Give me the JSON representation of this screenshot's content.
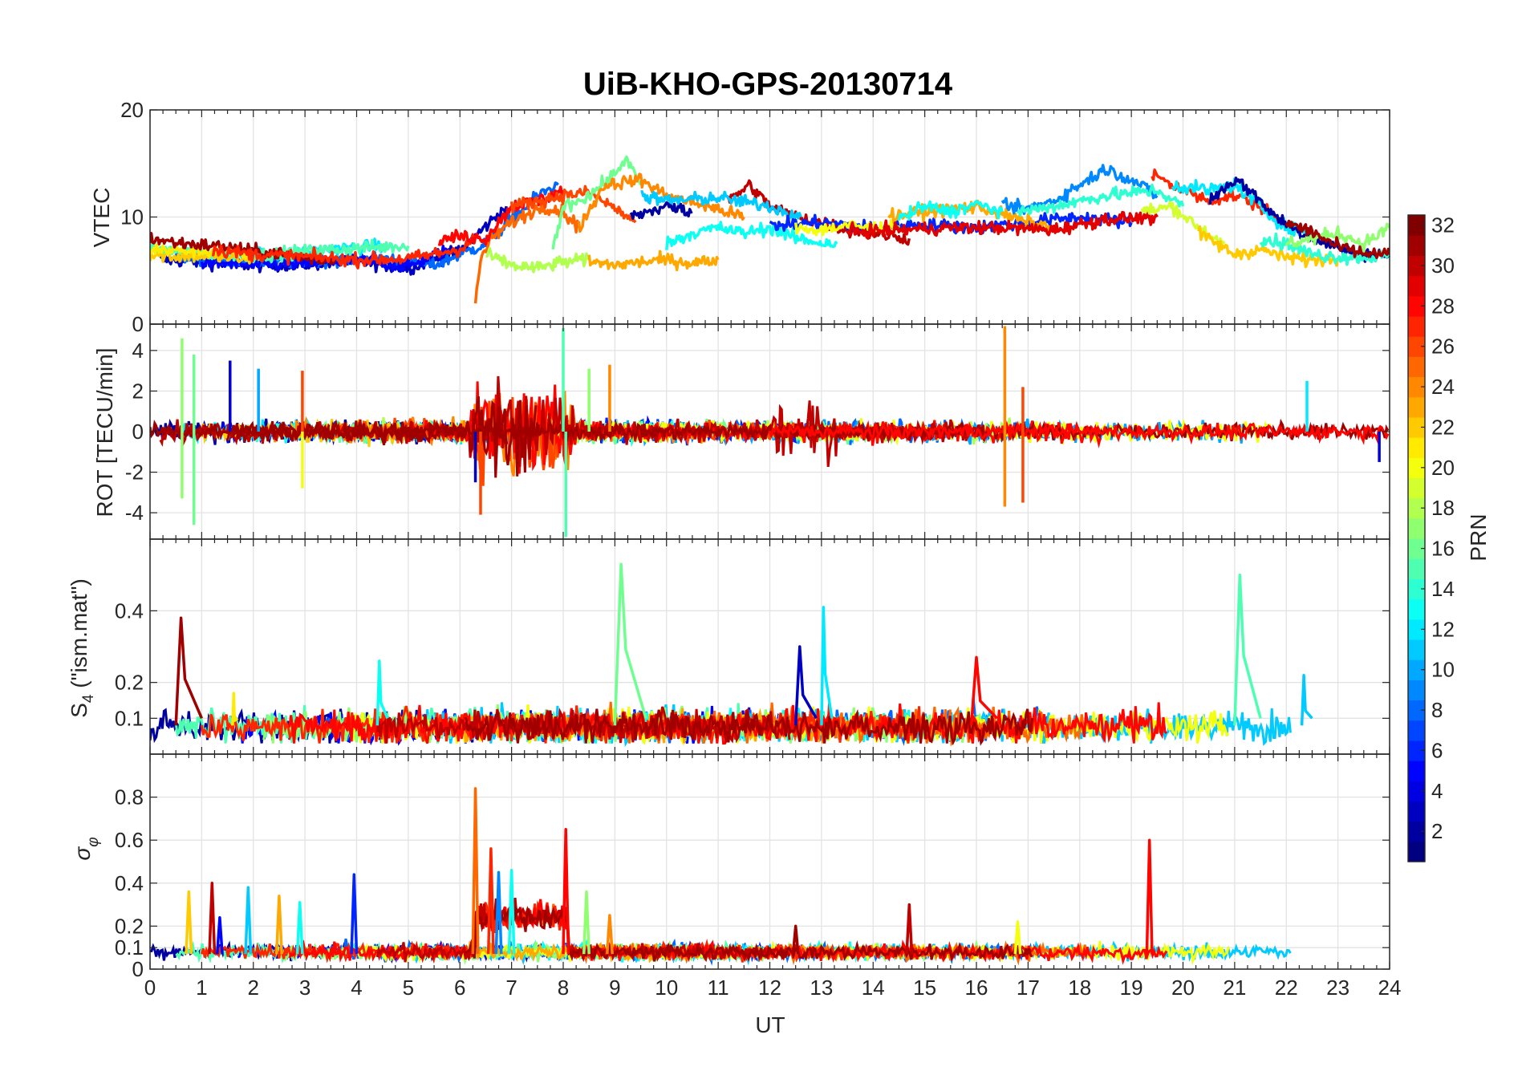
{
  "title": "UiB-KHO-GPS-20130714",
  "chart_data": [
    {
      "type": "line",
      "panel": "vtec",
      "ylabel": "VTEC",
      "ylim": [
        0,
        20
      ],
      "yticks": [
        0,
        10,
        20
      ],
      "xlim": [
        0,
        24
      ],
      "grid": true,
      "series_generation": "satellite tracks by PRN",
      "arcs": [
        {
          "prn": 3,
          "x": [
            0.2,
            1,
            2,
            3,
            4,
            5,
            6,
            6.9
          ],
          "y": [
            6,
            5.8,
            5.5,
            5.6,
            5.9,
            5.2,
            6.8,
            11
          ]
        },
        {
          "prn": 8,
          "x": [
            0.5,
            1.5,
            2.5,
            3.5,
            4.5,
            5.5,
            6.5,
            7.5,
            7.9
          ],
          "y": [
            6.2,
            6,
            5.8,
            6,
            6.2,
            5.5,
            7.5,
            12,
            13
          ]
        },
        {
          "prn": 5,
          "x": [
            1,
            2,
            3,
            4,
            5,
            5.8
          ],
          "y": [
            5.8,
            5.5,
            5.6,
            6,
            5.4,
            7
          ]
        },
        {
          "prn": 12,
          "x": [
            1.5,
            2.5,
            3.5,
            4.5
          ],
          "y": [
            6.8,
            6.5,
            7,
            7.3
          ]
        },
        {
          "prn": 15,
          "x": [
            0,
            1,
            2,
            3,
            4,
            5
          ],
          "y": [
            7,
            6.6,
            6.4,
            6.8,
            7.1,
            7.3
          ]
        },
        {
          "prn": 22,
          "x": [
            0,
            0.5,
            1,
            1.5,
            2
          ],
          "y": [
            6.5,
            6.3,
            6.4,
            6.2,
            6
          ]
        },
        {
          "prn": 21,
          "x": [
            0,
            1,
            2
          ],
          "y": [
            7,
            6.8,
            6.6
          ]
        },
        {
          "prn": 31,
          "x": [
            0,
            0.5,
            1,
            1.5,
            2,
            2.5,
            3,
            3.6
          ],
          "y": [
            8,
            7.6,
            7.4,
            7.2,
            6.8,
            6.6,
            6.2,
            5.9
          ]
        },
        {
          "prn": 27,
          "x": [
            1.2,
            2,
            3,
            4,
            5,
            6,
            6.3
          ],
          "y": [
            7,
            6.5,
            6.3,
            6,
            6.1,
            7,
            8
          ]
        },
        {
          "prn": 25,
          "x": [
            6.3,
            6.4,
            6.6,
            7,
            7.6,
            8,
            8.3
          ],
          "y": [
            2,
            6,
            8,
            9.5,
            11,
            10.5,
            9
          ]
        },
        {
          "prn": 28,
          "x": [
            5.6,
            6,
            6.5,
            7,
            7.5,
            8
          ],
          "y": [
            7.8,
            8.2,
            8,
            11,
            11.5,
            12.5
          ]
        },
        {
          "prn": 26,
          "x": [
            7,
            7.5,
            8,
            8.5,
            9,
            9.4
          ],
          "y": [
            11,
            11.5,
            12,
            12.3,
            10.8,
            9.5
          ]
        },
        {
          "prn": 18,
          "x": [
            6.5,
            7,
            7.5,
            8,
            8.5
          ],
          "y": [
            6.5,
            5.5,
            5.2,
            5.8,
            6
          ]
        },
        {
          "prn": 16,
          "x": [
            7.8,
            8,
            8.5,
            9,
            9.2,
            9.5
          ],
          "y": [
            7,
            11,
            12,
            14,
            15.5,
            13
          ]
        },
        {
          "prn": 23,
          "x": [
            8.5,
            9,
            9.5,
            10,
            10.5,
            11
          ],
          "y": [
            5.8,
            5.5,
            5.8,
            6,
            5.7,
            6
          ]
        },
        {
          "prn": 24,
          "x": [
            8.3,
            8.8,
            9.5,
            10,
            10.8,
            11.5
          ],
          "y": [
            9,
            13,
            13.5,
            12,
            11,
            10
          ]
        },
        {
          "prn": 2,
          "x": [
            9.3,
            10,
            10.5
          ],
          "y": [
            10,
            11,
            10.5
          ]
        },
        {
          "prn": 13,
          "x": [
            10,
            10.5,
            11,
            11.5,
            12,
            12.5,
            13,
            13.3
          ],
          "y": [
            7.5,
            8.5,
            9,
            8.5,
            9,
            8,
            7.6,
            7.5
          ]
        },
        {
          "prn": 30,
          "x": [
            11.2,
            11.6,
            12,
            12.5,
            13,
            13.5,
            14,
            14.7
          ],
          "y": [
            11.5,
            13,
            11,
            10,
            9.5,
            8.8,
            8.5,
            8
          ]
        },
        {
          "prn": 11,
          "x": [
            9.5,
            10,
            11,
            12,
            12.6
          ],
          "y": [
            12,
            11.5,
            11.8,
            11,
            10
          ]
        },
        {
          "prn": 6,
          "x": [
            12,
            13,
            14,
            15,
            16,
            17,
            18,
            19
          ],
          "y": [
            9.2,
            9.5,
            9,
            9.3,
            9,
            9.5,
            10,
            9.5
          ]
        },
        {
          "prn": 20,
          "x": [
            12.5,
            13,
            13.5,
            14,
            14.5
          ],
          "y": [
            9,
            8.8,
            9.2,
            9,
            9.2
          ]
        },
        {
          "prn": 23,
          "x": [
            14.3,
            15,
            16,
            17,
            17.5
          ],
          "y": [
            10,
            10.5,
            11,
            9.5,
            9
          ]
        },
        {
          "prn": 13,
          "x": [
            14.5,
            15,
            15.5,
            16,
            16.5
          ],
          "y": [
            9.8,
            11,
            10.5,
            11.2,
            10.5
          ]
        },
        {
          "prn": 29,
          "x": [
            13.5,
            14.5,
            15.5,
            16.5,
            17.5,
            18.5,
            19.5
          ],
          "y": [
            8.6,
            8.8,
            9,
            9,
            8.8,
            9.8,
            10
          ]
        },
        {
          "prn": 9,
          "x": [
            16.5,
            17,
            17.5,
            18,
            18.5,
            19,
            19.5
          ],
          "y": [
            11,
            10.8,
            11.5,
            13,
            14.5,
            13.5,
            12
          ]
        },
        {
          "prn": 14,
          "x": [
            16.8,
            17.5,
            18.5,
            19.5,
            20
          ],
          "y": [
            10.5,
            11,
            12,
            12.5,
            11
          ]
        },
        {
          "prn": 27,
          "x": [
            19.4,
            20,
            20.5,
            21,
            21.5,
            22
          ],
          "y": [
            14,
            12.5,
            11.5,
            12,
            11,
            9
          ]
        },
        {
          "prn": 12,
          "x": [
            19.8,
            20.5,
            21,
            21.5,
            22,
            22.5
          ],
          "y": [
            13,
            12.5,
            13,
            11,
            9,
            8.5
          ]
        },
        {
          "prn": 2,
          "x": [
            20.5,
            21,
            21.3,
            21.8,
            22.3,
            22.8,
            23.4,
            24
          ],
          "y": [
            11.5,
            13.5,
            12.5,
            10,
            8.5,
            7.5,
            6.5,
            6.5
          ]
        },
        {
          "prn": 19,
          "x": [
            19.2,
            19.8,
            20.3,
            20.8
          ],
          "y": [
            10.5,
            11,
            9,
            7.5
          ]
        },
        {
          "prn": 22,
          "x": [
            20.3,
            21,
            21.5,
            22,
            22.5,
            23
          ],
          "y": [
            8.5,
            6.5,
            7,
            6.2,
            6,
            6.2
          ]
        },
        {
          "prn": 14,
          "x": [
            21.5,
            22,
            22.5,
            23,
            23.5,
            24
          ],
          "y": [
            8,
            7.5,
            6.5,
            6.3,
            6.2,
            6.4
          ]
        },
        {
          "prn": 17,
          "x": [
            22,
            22.5,
            23,
            23.5,
            24
          ],
          "y": [
            7.5,
            8,
            8.5,
            7.5,
            9
          ]
        },
        {
          "prn": 31,
          "x": [
            22,
            22.5,
            23,
            23.5,
            24
          ],
          "y": [
            9.5,
            8.6,
            7.2,
            6.6,
            6.5
          ]
        }
      ]
    },
    {
      "type": "line",
      "panel": "rot",
      "ylabel": "ROT [TECU/min]",
      "ylim": [
        -5.3,
        5.3
      ],
      "yticks": [
        -4,
        -2,
        0,
        2,
        4
      ],
      "xlim": [
        0,
        24
      ],
      "grid": true,
      "series_generation": "noise around zero per PRN",
      "spikes": [
        {
          "prn": 17,
          "x": 0.62,
          "y": 4.6
        },
        {
          "prn": 17,
          "x": 0.62,
          "y": -3.3
        },
        {
          "prn": 16,
          "x": 0.85,
          "y": -4.6
        },
        {
          "prn": 16,
          "x": 0.85,
          "y": 3.8
        },
        {
          "prn": 4,
          "x": 1.55,
          "y": 3.5
        },
        {
          "prn": 10,
          "x": 2.1,
          "y": 3.1
        },
        {
          "prn": 20,
          "x": 2.95,
          "y": -2.8
        },
        {
          "prn": 26,
          "x": 2.95,
          "y": 3
        },
        {
          "prn": 3,
          "x": 6.3,
          "y": -2.5
        },
        {
          "prn": 26,
          "x": 6.4,
          "y": -4.1
        },
        {
          "prn": 15,
          "x": 8.0,
          "y": 5.1
        },
        {
          "prn": 15,
          "x": 8.05,
          "y": -5.2
        },
        {
          "prn": 24,
          "x": 8.9,
          "y": 3.3
        },
        {
          "prn": 17,
          "x": 8.5,
          "y": 3.1
        },
        {
          "prn": 24,
          "x": 16.55,
          "y": 5.2
        },
        {
          "prn": 24,
          "x": 16.55,
          "y": -3.7
        },
        {
          "prn": 26,
          "x": 16.9,
          "y": -3.5
        },
        {
          "prn": 26,
          "x": 16.9,
          "y": 2.2
        },
        {
          "prn": 12,
          "x": 22.4,
          "y": 2.5
        },
        {
          "prn": 4,
          "x": 23.8,
          "y": -1.5
        }
      ]
    },
    {
      "type": "line",
      "panel": "s4",
      "ylabel": "S4 (\"ism.mat\")",
      "ylim": [
        0,
        0.6
      ],
      "yticks": [
        0.1,
        0.2,
        0.4
      ],
      "xlim": [
        0,
        24
      ],
      "grid": true,
      "peaks": [
        {
          "prn": 31,
          "x0": 0.5,
          "x1": 1.0,
          "y": 0.38
        },
        {
          "prn": 21,
          "x0": 1.6,
          "x1": 1.7,
          "y": 0.17
        },
        {
          "prn": 13,
          "x0": 4.4,
          "x1": 4.6,
          "y": 0.26
        },
        {
          "prn": 16,
          "x0": 9.0,
          "x1": 9.6,
          "y": 0.53
        },
        {
          "prn": 3,
          "x0": 12.5,
          "x1": 12.9,
          "y": 0.3
        },
        {
          "prn": 12,
          "x0": 13.0,
          "x1": 13.2,
          "y": 0.41
        },
        {
          "prn": 28,
          "x0": 15.9,
          "x1": 16.4,
          "y": 0.27
        },
        {
          "prn": 15,
          "x0": 21.0,
          "x1": 21.5,
          "y": 0.5
        },
        {
          "prn": 11,
          "x0": 22.3,
          "x1": 22.5,
          "y": 0.22
        }
      ]
    },
    {
      "type": "line",
      "panel": "sigma_phi",
      "ylabel": "σ φ",
      "ylim": [
        0,
        1
      ],
      "yticks": [
        0,
        0.1,
        0.2,
        0.4,
        0.6,
        0.8
      ],
      "xlim": [
        0,
        24
      ],
      "xticks": [
        0,
        1,
        2,
        3,
        4,
        5,
        6,
        7,
        8,
        9,
        10,
        11,
        12,
        13,
        14,
        15,
        16,
        17,
        18,
        19,
        20,
        21,
        22,
        23,
        24
      ],
      "xlabel": "UT",
      "grid": true,
      "spikes": [
        {
          "prn": 22,
          "x": 0.75,
          "y": 0.36
        },
        {
          "prn": 30,
          "x": 1.2,
          "y": 0.4
        },
        {
          "prn": 5,
          "x": 1.35,
          "y": 0.24
        },
        {
          "prn": 11,
          "x": 1.9,
          "y": 0.38
        },
        {
          "prn": 23,
          "x": 2.5,
          "y": 0.34
        },
        {
          "prn": 13,
          "x": 2.9,
          "y": 0.31
        },
        {
          "prn": 6,
          "x": 3.95,
          "y": 0.44
        },
        {
          "prn": 25,
          "x": 6.3,
          "y": 0.84
        },
        {
          "prn": 27,
          "x": 6.6,
          "y": 0.56
        },
        {
          "prn": 9,
          "x": 6.75,
          "y": 0.45
        },
        {
          "prn": 13,
          "x": 7.0,
          "y": 0.46
        },
        {
          "prn": 28,
          "x": 8.05,
          "y": 0.65
        },
        {
          "prn": 17,
          "x": 8.45,
          "y": 0.36
        },
        {
          "prn": 24,
          "x": 8.9,
          "y": 0.25
        },
        {
          "prn": 30,
          "x": 14.7,
          "y": 0.3
        },
        {
          "prn": 31,
          "x": 12.5,
          "y": 0.2
        },
        {
          "prn": 20,
          "x": 16.8,
          "y": 0.22
        },
        {
          "prn": 28,
          "x": 19.35,
          "y": 0.6
        }
      ]
    }
  ],
  "colorbar": {
    "label": "PRN",
    "min": 1,
    "max": 32,
    "ticks": [
      2,
      4,
      6,
      8,
      10,
      12,
      14,
      16,
      18,
      20,
      22,
      24,
      26,
      28,
      30,
      32
    ]
  }
}
